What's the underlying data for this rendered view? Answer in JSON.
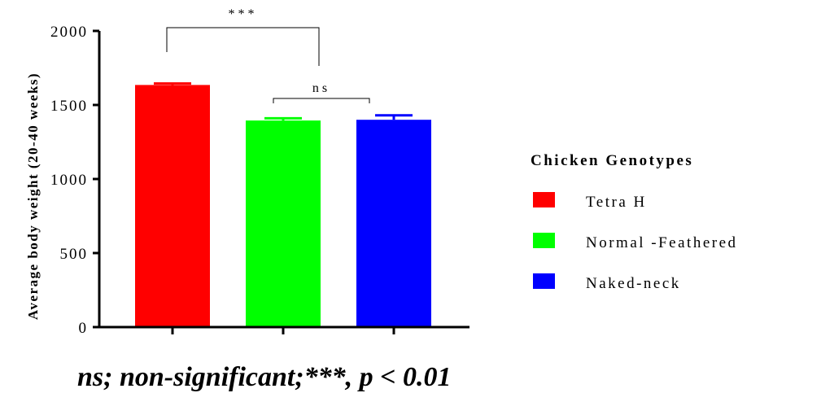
{
  "chart_data": {
    "type": "bar",
    "title": "",
    "xlabel": "",
    "ylabel": "Average body weight (20-40 weeks)",
    "ylim": [
      0,
      2000
    ],
    "yticks": [
      0,
      500,
      1000,
      1500,
      2000
    ],
    "categories": [
      "Tetra H",
      "Normal -Feathered",
      "Naked-neck"
    ],
    "values": [
      1635,
      1395,
      1400
    ],
    "errors": [
      10,
      15,
      30
    ],
    "colors": [
      "#ff0000",
      "#00ff00",
      "#0000ff"
    ],
    "grid": false,
    "legend": {
      "title": "Chicken Genotypes",
      "placement": "right",
      "entries": [
        "Tetra H",
        "Normal -Feathered",
        "Naked-neck"
      ]
    },
    "annotations": [
      {
        "from": 0,
        "to": 1,
        "label": "***"
      },
      {
        "from": 1,
        "to": 2,
        "label": "ns"
      }
    ],
    "footnote": "ns; non-significant;***, p < 0.01"
  }
}
